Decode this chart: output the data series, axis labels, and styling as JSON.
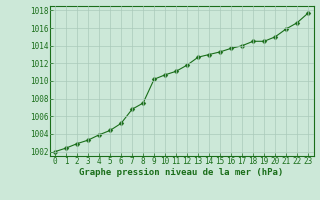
{
  "x": [
    0,
    1,
    2,
    3,
    4,
    5,
    6,
    7,
    8,
    9,
    10,
    11,
    12,
    13,
    14,
    15,
    16,
    17,
    18,
    19,
    20,
    21,
    22,
    23
  ],
  "y": [
    1002.0,
    1002.4,
    1002.9,
    1003.3,
    1003.9,
    1004.4,
    1005.2,
    1006.8,
    1007.5,
    1010.2,
    1010.7,
    1011.1,
    1011.8,
    1012.7,
    1013.0,
    1013.3,
    1013.7,
    1014.0,
    1014.5,
    1014.5,
    1015.0,
    1015.9,
    1016.6,
    1017.7
  ],
  "line_color": "#1a6e1a",
  "marker": "D",
  "marker_size": 2.5,
  "bg_color": "#cce8d8",
  "grid_color": "#aacaba",
  "ylim": [
    1001.5,
    1018.5
  ],
  "xlim": [
    -0.5,
    23.5
  ],
  "yticks": [
    1002,
    1004,
    1006,
    1008,
    1010,
    1012,
    1014,
    1016,
    1018
  ],
  "xticks": [
    0,
    1,
    2,
    3,
    4,
    5,
    6,
    7,
    8,
    9,
    10,
    11,
    12,
    13,
    14,
    15,
    16,
    17,
    18,
    19,
    20,
    21,
    22,
    23
  ],
  "xlabel": "Graphe pression niveau de la mer (hPa)",
  "xlabel_fontsize": 6.5,
  "tick_fontsize": 5.5,
  "axis_color": "#1a6e1a",
  "spine_color": "#1a6e1a",
  "line_width": 0.8
}
